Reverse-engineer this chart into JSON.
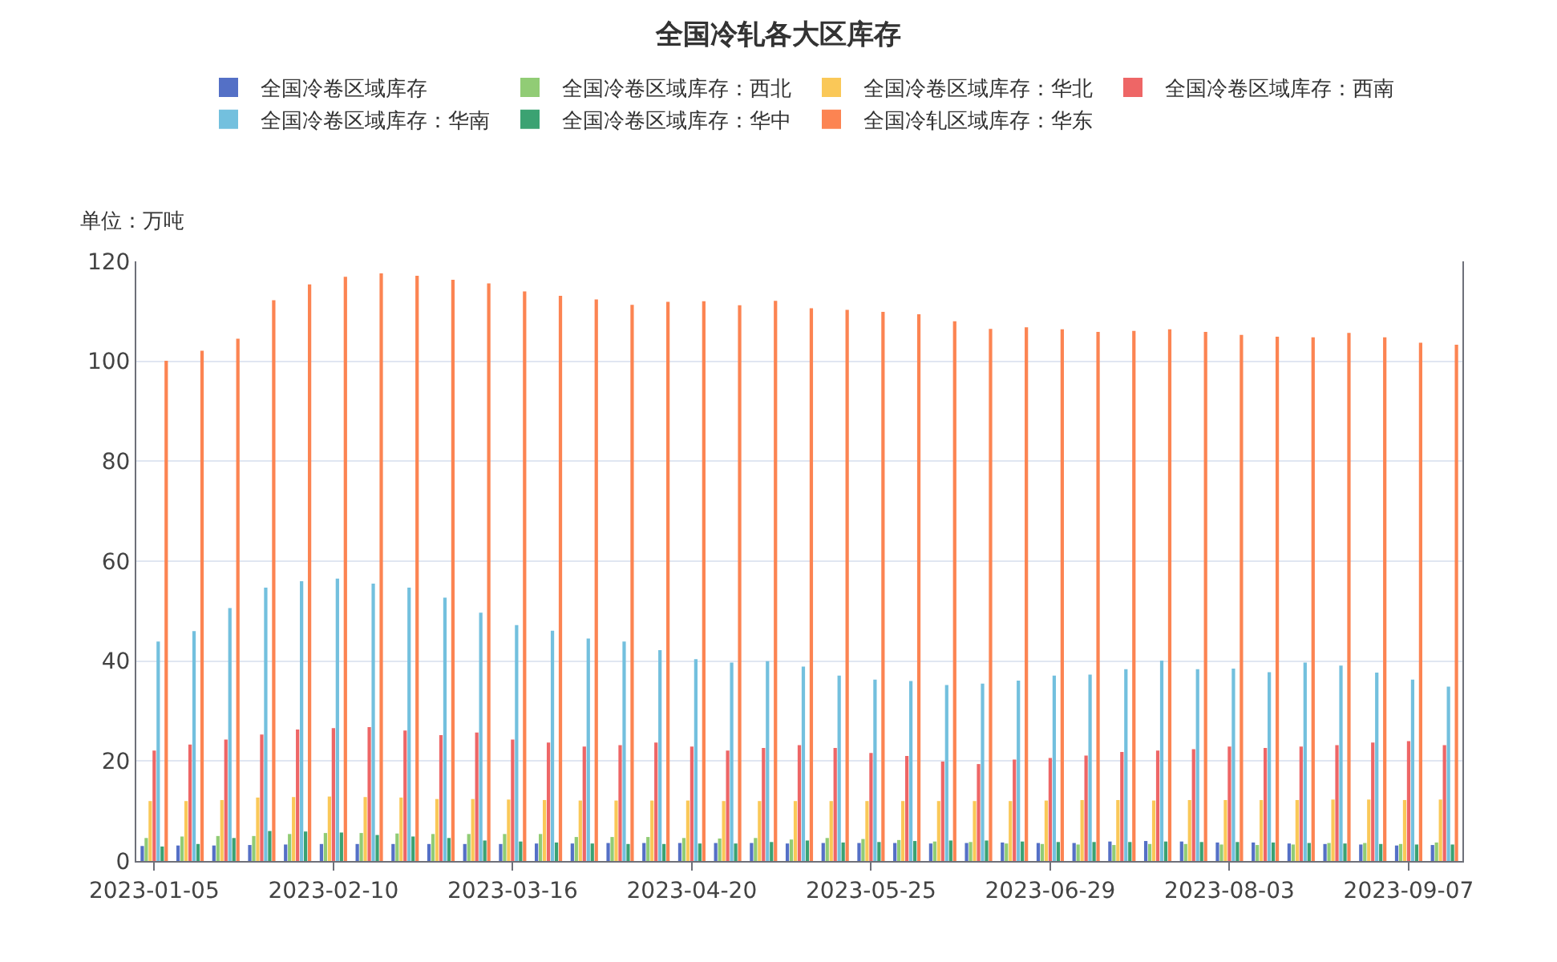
{
  "chart_data": {
    "type": "bar",
    "title": "全国冷轧各大区库存",
    "ylabel": "单位：万吨",
    "categories": [
      "2023-01-05",
      null,
      null,
      null,
      null,
      "2023-02-10",
      null,
      null,
      null,
      null,
      "2023-03-16",
      null,
      null,
      null,
      null,
      "2023-04-20",
      null,
      null,
      null,
      null,
      "2023-05-25",
      null,
      null,
      null,
      null,
      "2023-06-29",
      null,
      null,
      null,
      null,
      "2023-08-03",
      null,
      null,
      null,
      null,
      "2023-09-07",
      null
    ],
    "series": [
      {
        "name": "全国冷卷区域库存",
        "color": "#5470c6",
        "values": [
          3,
          3.1,
          3.1,
          3.2,
          3.3,
          3.4,
          3.4,
          3.4,
          3.4,
          3.4,
          3.4,
          3.5,
          3.5,
          3.6,
          3.6,
          3.6,
          3.6,
          3.6,
          3.5,
          3.6,
          3.6,
          3.6,
          3.5,
          3.6,
          3.7,
          3.6,
          3.6,
          3.9,
          4,
          3.9,
          3.7,
          3.7,
          3.5,
          3.4,
          3.3,
          3.1,
          3.2
        ]
      },
      {
        "name": "全国冷卷区域库存：西北",
        "color": "#91cc75",
        "values": [
          4.6,
          4.9,
          5,
          5,
          5.4,
          5.6,
          5.6,
          5.5,
          5.4,
          5.4,
          5.4,
          5.4,
          4.8,
          4.8,
          4.8,
          4.6,
          4.5,
          4.6,
          4.3,
          4.6,
          4.4,
          4.2,
          3.9,
          3.8,
          3.5,
          3.4,
          3.3,
          3.2,
          3.4,
          3.4,
          3.3,
          3.2,
          3.3,
          3.6,
          3.6,
          3.4,
          3.7
        ]
      },
      {
        "name": "全国冷卷区域库存：华北",
        "color": "#fac858",
        "values": [
          12,
          12,
          12.2,
          12.7,
          12.8,
          12.9,
          12.8,
          12.7,
          12.4,
          12.4,
          12.3,
          12.2,
          12.1,
          12.1,
          12.1,
          12.1,
          12,
          12,
          12,
          12,
          12,
          12,
          12,
          12,
          12,
          12.1,
          12.2,
          12.2,
          12.1,
          12.2,
          12.2,
          12.2,
          12.2,
          12.3,
          12.3,
          12.2,
          12.3
        ]
      },
      {
        "name": "全国冷卷区域库存：西南",
        "color": "#ee6666",
        "values": [
          22.1,
          23.3,
          24.3,
          25.3,
          26.3,
          26.6,
          26.8,
          26.1,
          25.2,
          25.7,
          24.3,
          23.7,
          22.9,
          23.2,
          23.7,
          22.9,
          22.1,
          22.6,
          23.2,
          22.6,
          21.6,
          21,
          19.9,
          19.4,
          20.3,
          20.6,
          21.1,
          21.8,
          22.1,
          22.4,
          22.9,
          22.6,
          22.9,
          23.2,
          23.7,
          24,
          23.2
        ]
      },
      {
        "name": "全国冷卷区域库存：华南",
        "color": "#73c0de",
        "values": [
          43.9,
          46,
          50.6,
          54.7,
          56,
          56.5,
          55.5,
          54.7,
          52.7,
          49.7,
          47.2,
          46.1,
          44.5,
          43.9,
          42.2,
          40.4,
          39.7,
          40,
          38.9,
          37.1,
          36.3,
          36,
          35.2,
          35.5,
          36.1,
          37.1,
          37.3,
          38.4,
          40.1,
          38.4,
          38.5,
          37.8,
          39.7,
          39.1,
          37.7,
          36.3,
          34.9
        ]
      },
      {
        "name": "全国冷卷区域库存：华中",
        "color": "#3ba272",
        "values": [
          2.9,
          3.4,
          4.6,
          6,
          5.9,
          5.7,
          5.2,
          4.9,
          4.6,
          4.1,
          3.9,
          3.7,
          3.5,
          3.4,
          3.4,
          3.5,
          3.5,
          3.8,
          4.1,
          3.7,
          3.8,
          4,
          4.1,
          4.1,
          3.9,
          3.8,
          3.8,
          3.8,
          3.9,
          3.8,
          3.8,
          3.7,
          3.6,
          3.5,
          3.4,
          3.3,
          3.3
        ]
      },
      {
        "name": "全国冷轧区域库存：华东",
        "color": "#fc8452",
        "values": [
          100.1,
          102.1,
          104.5,
          112.2,
          115.4,
          116.9,
          117.6,
          117.1,
          116.3,
          115.6,
          114,
          113.1,
          112.4,
          111.3,
          111.9,
          112,
          111.2,
          112.1,
          110.6,
          110.3,
          109.9,
          109.4,
          108,
          106.5,
          106.8,
          106.4,
          105.9,
          106.1,
          106.4,
          105.9,
          105.3,
          104.9,
          104.8,
          105.7,
          104.8,
          103.7,
          103.3
        ]
      }
    ],
    "ylim": [
      0,
      120
    ],
    "yticks": [
      0,
      20,
      40,
      60,
      80,
      100,
      120
    ],
    "grid": "y",
    "legend": "top"
  }
}
